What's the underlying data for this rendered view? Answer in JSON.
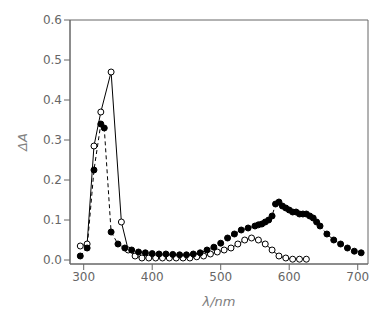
{
  "chart_data": {
    "type": "line",
    "xlabel": "λ/nm",
    "ylabel": "ΔA",
    "xlim": [
      280,
      715
    ],
    "ylim": [
      -0.01,
      0.6
    ],
    "xticks": [
      300,
      400,
      500,
      600,
      700
    ],
    "yticks": [
      {
        "value": 0.0,
        "label": "0.0"
      },
      0.1,
      0.2,
      0.3,
      0.4,
      0.5,
      0.6
    ],
    "grid": false,
    "series": [
      {
        "color": "black",
        "marker": "open_circle",
        "line_style": "solid",
        "x": [
          295,
          305,
          315,
          325,
          340,
          355,
          365,
          375,
          385,
          395,
          405,
          415,
          425,
          435,
          445,
          455,
          465,
          475,
          485,
          495,
          505,
          515,
          525,
          535,
          545,
          555,
          565,
          575,
          585,
          595,
          605,
          615,
          625
        ],
        "values": [
          0.035,
          0.04,
          0.285,
          0.37,
          0.47,
          0.095,
          0.025,
          0.01,
          0.005,
          0.005,
          0.005,
          0.005,
          0.005,
          0.005,
          0.005,
          0.005,
          0.008,
          0.01,
          0.015,
          0.02,
          0.025,
          0.03,
          0.04,
          0.05,
          0.055,
          0.05,
          0.04,
          0.025,
          0.01,
          0.005,
          0.002,
          0.002,
          0.002
        ]
      },
      {
        "color": "black",
        "marker": "circle",
        "line_style": "dashed",
        "x": [
          295,
          305,
          315,
          325,
          330,
          340,
          350,
          360,
          370,
          380,
          390,
          400,
          410,
          420,
          430,
          440,
          450,
          460,
          470,
          480,
          490,
          500,
          510,
          520,
          530,
          540,
          550,
          555,
          560,
          565,
          570,
          575,
          580,
          585,
          590,
          595,
          600,
          605,
          610,
          615,
          620,
          625,
          630,
          635,
          640,
          645,
          655,
          665,
          675,
          685,
          695,
          705
        ],
        "values": [
          0.01,
          0.03,
          0.225,
          0.34,
          0.33,
          0.07,
          0.04,
          0.03,
          0.025,
          0.02,
          0.018,
          0.016,
          0.015,
          0.015,
          0.014,
          0.013,
          0.013,
          0.015,
          0.018,
          0.025,
          0.032,
          0.042,
          0.055,
          0.065,
          0.075,
          0.08,
          0.085,
          0.088,
          0.09,
          0.095,
          0.1,
          0.11,
          0.14,
          0.145,
          0.135,
          0.13,
          0.125,
          0.12,
          0.12,
          0.115,
          0.115,
          0.115,
          0.11,
          0.105,
          0.095,
          0.085,
          0.065,
          0.05,
          0.04,
          0.03,
          0.022,
          0.018
        ]
      }
    ]
  }
}
